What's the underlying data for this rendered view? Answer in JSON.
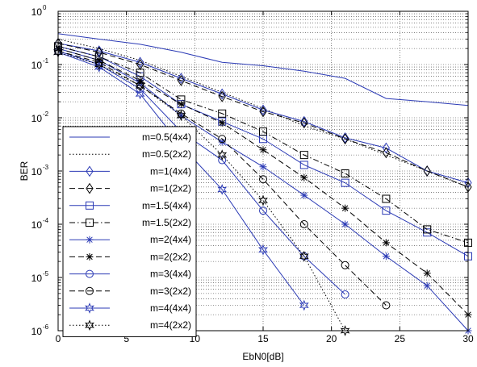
{
  "chart_data": {
    "type": "line",
    "title": "",
    "xlabel": "EbN0[dB]",
    "ylabel": "BER",
    "xlim": [
      0,
      30
    ],
    "ylim": [
      1e-06,
      1
    ],
    "yscale": "log",
    "xticks": [
      0,
      5,
      10,
      15,
      20,
      25,
      30
    ],
    "xtick_labels": [
      "0",
      "5",
      "10",
      "15",
      "20",
      "25",
      "30"
    ],
    "ytick_exponents": [
      -6,
      -5,
      -4,
      -3,
      -2,
      -1,
      0
    ],
    "ytick_base": "10",
    "grid": "dotted, major and minor",
    "legend_position": "left, lower",
    "colors": {
      "blue": "#2b3ab5",
      "black": "#000000"
    },
    "series": [
      {
        "name": "m=0.5(4x4)",
        "color": "blue",
        "line": "solid",
        "marker": "none",
        "x": [
          0,
          3,
          6,
          9,
          12,
          15,
          18,
          21,
          24,
          27,
          30
        ],
        "y": [
          0.38,
          0.3,
          0.24,
          0.17,
          0.11,
          0.095,
          0.075,
          0.055,
          0.023,
          0.02,
          0.017
        ]
      },
      {
        "name": "m=0.5(2x2)",
        "color": "black",
        "line": "dotted",
        "marker": "none",
        "x": [
          0,
          3,
          6,
          9,
          12,
          15,
          18,
          21,
          24,
          27,
          30
        ],
        "y": [
          0.3,
          0.2,
          0.12,
          0.06,
          0.03,
          0.015,
          0.007,
          0.004,
          0.002,
          0.001,
          0.0005
        ]
      },
      {
        "name": "m=1(4x4)",
        "color": "blue",
        "line": "solid",
        "marker": "diamond",
        "x": [
          0,
          3,
          6,
          9,
          12,
          15,
          18,
          21,
          24,
          27,
          30
        ],
        "y": [
          0.25,
          0.18,
          0.11,
          0.055,
          0.028,
          0.014,
          0.0085,
          0.0042,
          0.0027,
          0.001,
          0.0006
        ]
      },
      {
        "name": "m=1(2x2)",
        "color": "black",
        "line": "dashed",
        "marker": "diamond",
        "x": [
          0,
          3,
          6,
          9,
          12,
          15,
          18,
          21,
          24,
          27,
          30
        ],
        "y": [
          0.25,
          0.17,
          0.1,
          0.05,
          0.025,
          0.013,
          0.008,
          0.004,
          0.0022,
          0.001,
          0.0005
        ]
      },
      {
        "name": "m=1.5(4x4)",
        "color": "blue",
        "line": "solid",
        "marker": "square",
        "x": [
          0,
          3,
          6,
          9,
          12,
          15,
          18,
          21,
          24,
          27,
          30
        ],
        "y": [
          0.22,
          0.14,
          0.06,
          0.018,
          0.0085,
          0.004,
          0.0013,
          0.0006,
          0.00018,
          7e-05,
          2.5e-05
        ]
      },
      {
        "name": "m=1.5(2x2)",
        "color": "black",
        "line": "dashdot",
        "marker": "square",
        "x": [
          0,
          3,
          6,
          9,
          12,
          15,
          18,
          21,
          24,
          27,
          30
        ],
        "y": [
          0.22,
          0.14,
          0.07,
          0.022,
          0.012,
          0.0055,
          0.002,
          0.0009,
          0.0003,
          8e-05,
          4.5e-05
        ]
      },
      {
        "name": "m=2(4x4)",
        "color": "blue",
        "line": "solid",
        "marker": "star",
        "x": [
          0,
          3,
          6,
          9,
          12,
          15,
          18,
          21,
          24,
          27,
          30
        ],
        "y": [
          0.2,
          0.12,
          0.045,
          0.011,
          0.0035,
          0.0012,
          0.00035,
          0.0001,
          2.5e-05,
          7e-06,
          1e-06
        ]
      },
      {
        "name": "m=2(2x2)",
        "color": "black",
        "line": "dashed",
        "marker": "star",
        "x": [
          0,
          3,
          6,
          9,
          12,
          15,
          18,
          21,
          24,
          27,
          30
        ],
        "y": [
          0.2,
          0.12,
          0.05,
          0.018,
          0.008,
          0.0025,
          0.00075,
          0.0002,
          4.5e-05,
          1.2e-05,
          2e-06
        ]
      },
      {
        "name": "m=3(4x4)",
        "color": "blue",
        "line": "solid",
        "marker": "circle",
        "x": [
          0,
          3,
          6,
          9,
          12,
          15,
          18,
          21
        ],
        "y": [
          0.18,
          0.1,
          0.035,
          0.0055,
          0.0016,
          0.00018,
          2.5e-05,
          4.8e-06
        ]
      },
      {
        "name": "m=3(2x2)",
        "color": "black",
        "line": "dashed",
        "marker": "circle",
        "x": [
          0,
          3,
          6,
          9,
          12,
          15,
          18,
          21,
          24
        ],
        "y": [
          0.18,
          0.11,
          0.04,
          0.012,
          0.004,
          0.0007,
          0.0001,
          1.7e-05,
          3e-06
        ]
      },
      {
        "name": "m=4(4x4)",
        "color": "blue",
        "line": "solid",
        "marker": "hexagram",
        "x": [
          0,
          3,
          6,
          9,
          12,
          15,
          18
        ],
        "y": [
          0.17,
          0.09,
          0.028,
          0.003,
          0.00045,
          3.3e-05,
          3e-06
        ]
      },
      {
        "name": "m=4(2x2)",
        "color": "black",
        "line": "dotted",
        "marker": "hexagram",
        "x": [
          0,
          3,
          6,
          9,
          12,
          15,
          18,
          21
        ],
        "y": [
          0.17,
          0.1,
          0.04,
          0.011,
          0.002,
          0.00028,
          2.5e-05,
          1e-06
        ]
      }
    ]
  }
}
